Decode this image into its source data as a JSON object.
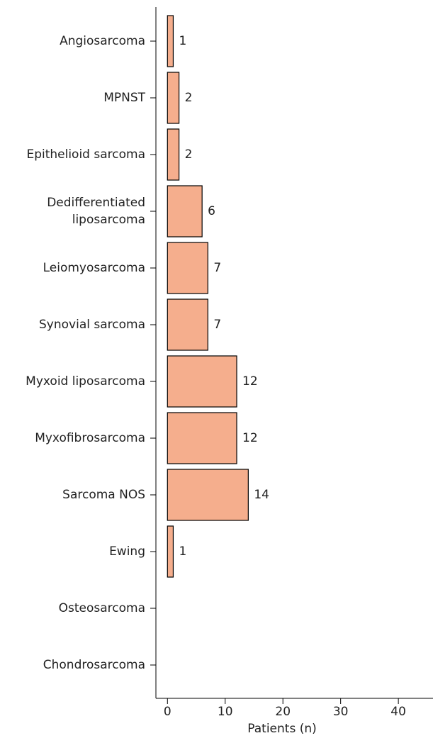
{
  "chart_data": {
    "type": "hbar",
    "x_label": "Patients (n)",
    "categories": [
      "Angiosarcoma",
      "MPNST",
      "Epithelioid sarcoma",
      "Dedifferentiated\nliposarcoma",
      "Leiomyosarcoma",
      "Synovial sarcoma",
      "Myxoid liposarcoma",
      "Myxofibrosarcoma",
      "Sarcoma NOS",
      "Ewing",
      "Osteosarcoma",
      "Chondrosarcoma"
    ],
    "values": [
      1,
      2,
      2,
      6,
      7,
      7,
      12,
      12,
      14,
      1,
      null,
      null
    ],
    "color": "#f5ae8d",
    "xlim": [
      -2,
      46
    ],
    "xticks": [
      0,
      10,
      20,
      30,
      40
    ]
  }
}
